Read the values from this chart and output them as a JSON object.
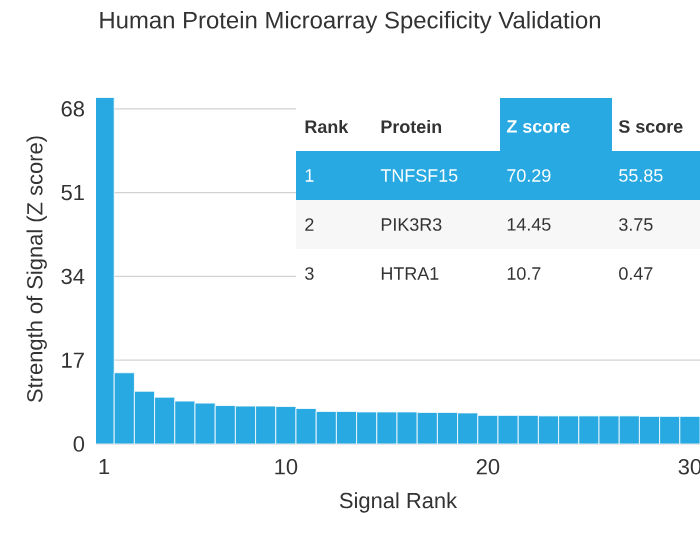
{
  "chart_data": {
    "type": "bar",
    "title": "Human Protein Microarray Specificity Validation",
    "xlabel": "Signal Rank",
    "ylabel": "Strength of Signal (Z score)",
    "x": [
      1,
      2,
      3,
      4,
      5,
      6,
      7,
      8,
      9,
      10,
      11,
      12,
      13,
      14,
      15,
      16,
      17,
      18,
      19,
      20,
      21,
      22,
      23,
      24,
      25,
      26,
      27,
      28,
      29,
      30
    ],
    "values": [
      70.29,
      14.45,
      10.7,
      9.5,
      8.7,
      8.3,
      7.8,
      7.7,
      7.7,
      7.6,
      7.2,
      6.6,
      6.6,
      6.5,
      6.5,
      6.5,
      6.4,
      6.4,
      6.3,
      5.8,
      5.8,
      5.8,
      5.7,
      5.7,
      5.7,
      5.7,
      5.7,
      5.6,
      5.6,
      5.6
    ],
    "color": "#29a9e1",
    "xlim": [
      0.6,
      30.5
    ],
    "ylim": [
      0,
      71
    ],
    "xticks": [
      1,
      10,
      20,
      30
    ],
    "yticks": [
      0,
      17,
      34,
      51,
      68
    ],
    "grid": "y",
    "annotations": [
      "Rank",
      "Protein",
      "Z score",
      "S score",
      "1",
      "TNFSF15",
      "70.29",
      "55.85",
      "2",
      "PIK3R3",
      "14.45",
      "3.75",
      "3",
      "HTRA1",
      "10.7",
      "0.47"
    ]
  }
}
